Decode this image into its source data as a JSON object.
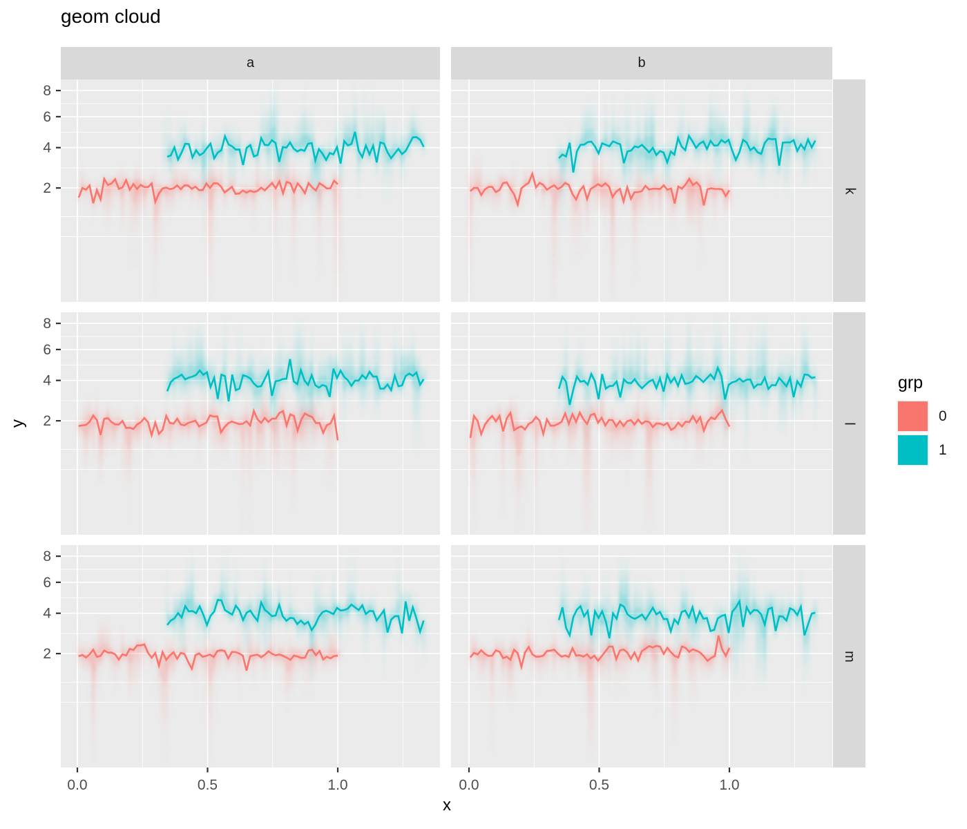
{
  "title": "geom cloud",
  "axes": {
    "x_title": "x",
    "y_title": "y",
    "x_tick_labels": [
      "0.0",
      "0.5",
      "1.0"
    ],
    "y_tick_labels": [
      "8",
      "6",
      "4",
      "2"
    ]
  },
  "facets": {
    "cols": [
      "a",
      "b"
    ],
    "rows": [
      "k",
      "l",
      "m"
    ]
  },
  "legend": {
    "title": "grp",
    "entries": [
      {
        "label": "0",
        "color": "#F8766D"
      },
      {
        "label": "1",
        "color": "#00BFC4"
      }
    ]
  },
  "colors": {
    "panel_bg": "#EBEBEB",
    "strip_bg": "#D9D9D9",
    "grid": "#FFFFFF",
    "axis_text": "#4D4D4D",
    "tick_mark": "#333333",
    "text": "#1A1A1A"
  },
  "chart_data": {
    "type": "line",
    "title": "geom cloud",
    "xlabel": "x",
    "ylabel": "y",
    "y_scale": "sqrt",
    "grid": true,
    "legend_position": "right",
    "facet_cols": [
      "a",
      "b"
    ],
    "facet_rows": [
      "k",
      "l",
      "m"
    ],
    "x_ticks": [
      0,
      0.5,
      1
    ],
    "x_minor_ticks": [
      0.25,
      0.75,
      1.25
    ],
    "y_ticks": [
      8,
      6,
      4,
      2
    ],
    "y_minor_gridlines": [
      6.96,
      4.95,
      2.91,
      1.0,
      0.5
    ],
    "x_range": [
      -0.065,
      1.393
    ],
    "y_range_sqrt": [
      -0.24,
      2.99
    ],
    "series": [
      {
        "name": "grp 0",
        "grp": "0",
        "color": "#F8766D",
        "x_start": 0.005,
        "x_end": 1.0,
        "mean_y": 2,
        "n_points": 72,
        "noise_sd": 0.07
      },
      {
        "name": "grp 1",
        "grp": "1",
        "color": "#00BFC4",
        "x_start": 0.345,
        "x_end": 1.33,
        "mean_y": 4,
        "n_points": 72,
        "noise_sd": 0.06
      }
    ],
    "panels": [
      {
        "row": "k",
        "col": "a",
        "seeds": [
          101,
          201
        ]
      },
      {
        "row": "k",
        "col": "b",
        "seeds": [
          102,
          202
        ]
      },
      {
        "row": "l",
        "col": "a",
        "seeds": [
          103,
          203
        ]
      },
      {
        "row": "l",
        "col": "b",
        "seeds": [
          104,
          204
        ]
      },
      {
        "row": "m",
        "col": "a",
        "seeds": [
          105,
          205
        ]
      },
      {
        "row": "m",
        "col": "b",
        "seeds": [
          106,
          206
        ]
      }
    ]
  }
}
